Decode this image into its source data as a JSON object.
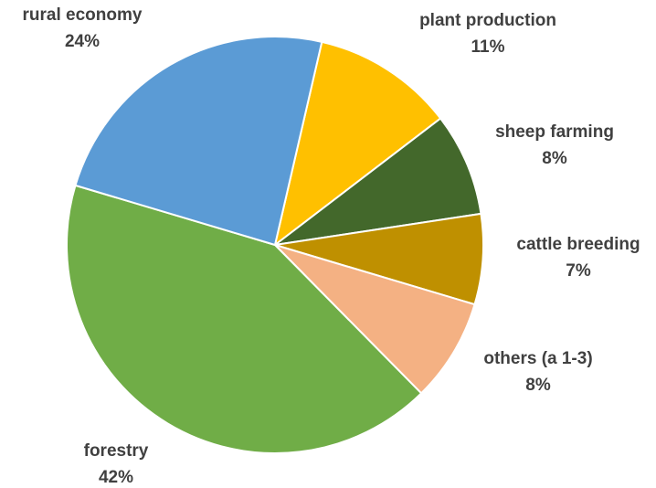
{
  "chart_data": {
    "type": "pie",
    "slices": [
      {
        "name": "plant production",
        "value": 11,
        "label": "11%",
        "color": "#FFC000"
      },
      {
        "name": "sheep farming",
        "value": 8,
        "label": "8%",
        "color": "#43682B"
      },
      {
        "name": "cattle breeding",
        "value": 7,
        "label": "7%",
        "color": "#BF9000"
      },
      {
        "name": "others (a 1-3)",
        "value": 8,
        "label": "8%",
        "color": "#F4B183"
      },
      {
        "name": "forestry",
        "value": 42,
        "label": "42%",
        "color": "#70AD47"
      },
      {
        "name": "rural economy",
        "value": 24,
        "label": "24%",
        "color": "#5B9BD5"
      }
    ],
    "start_angle_deg": 13,
    "direction": "clockwise",
    "legend": "none"
  }
}
